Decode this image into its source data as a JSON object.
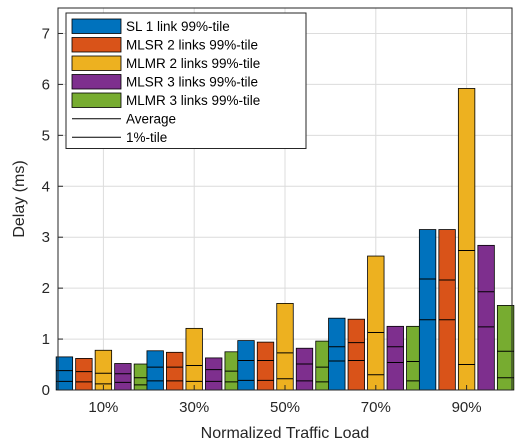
{
  "chart_data": {
    "type": "bar",
    "xlabel": "Normalized Traffic Load",
    "ylabel": "Delay (ms)",
    "ylim": [
      0,
      7.5
    ],
    "yticks": [
      0,
      1,
      2,
      3,
      4,
      5,
      6,
      7
    ],
    "grid": true,
    "legend_position": "top-left",
    "categories": [
      "10%",
      "30%",
      "50%",
      "70%",
      "90%"
    ],
    "series": [
      {
        "name": "SL 1 link 99%-tile",
        "color": "#0072BD",
        "values": [
          0.65,
          0.77,
          0.97,
          1.41,
          3.15
        ],
        "average": [
          0.38,
          0.45,
          0.58,
          0.85,
          2.18
        ],
        "p1": [
          0.17,
          0.18,
          0.19,
          0.57,
          1.38
        ]
      },
      {
        "name": "MLSR 2 links 99%-tile",
        "color": "#D95319",
        "values": [
          0.62,
          0.74,
          0.94,
          1.39,
          3.15
        ],
        "average": [
          0.36,
          0.45,
          0.58,
          0.93,
          2.16
        ],
        "p1": [
          0.16,
          0.18,
          0.19,
          0.58,
          1.38
        ]
      },
      {
        "name": "MLMR 2 links 99%-tile",
        "color": "#EDB120",
        "values": [
          0.78,
          1.21,
          1.7,
          2.63,
          5.92
        ],
        "average": [
          0.33,
          0.48,
          0.73,
          1.13,
          2.74
        ],
        "p1": [
          0.12,
          0.17,
          0.22,
          0.3,
          0.5
        ]
      },
      {
        "name": "MLSR 3 links 99%-tile",
        "color": "#7E2F8E",
        "values": [
          0.52,
          0.63,
          0.82,
          1.25,
          2.84
        ],
        "average": [
          0.32,
          0.4,
          0.51,
          0.85,
          1.93
        ],
        "p1": [
          0.15,
          0.17,
          0.18,
          0.54,
          1.24
        ]
      },
      {
        "name": "MLMR 3 links 99%-tile",
        "color": "#77AC30",
        "values": [
          0.51,
          0.75,
          0.96,
          1.25,
          1.66
        ],
        "average": [
          0.24,
          0.37,
          0.45,
          0.56,
          0.76
        ],
        "p1": [
          0.1,
          0.16,
          0.16,
          0.18,
          0.24
        ]
      }
    ],
    "legend_lines": [
      "Average",
      "1%-tile"
    ]
  }
}
